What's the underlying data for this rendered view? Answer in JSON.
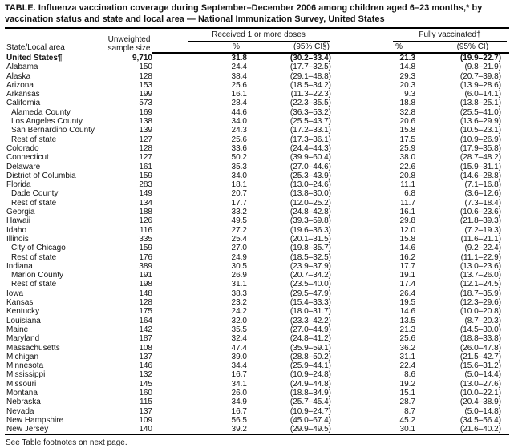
{
  "title": "TABLE. Influenza vaccination coverage during September–December 2006 among children aged 6–23 months,* by vaccination status and state and local area — National Immunization Survey, United States",
  "header": {
    "state_col": "State/Local area",
    "sample_col_line1": "Unweighted",
    "sample_col_line2": "sample size",
    "group_received": "Received 1 or more doses",
    "group_fully": "Fully vaccinated†",
    "pct_received": "%",
    "ci_received": "(95% CI§)",
    "pct_fully": "%",
    "ci_fully": "(95% CI)"
  },
  "rows": [
    {
      "area": "United States¶",
      "indent": false,
      "bold": true,
      "n": "9,710",
      "pct1": "31.8",
      "ci1": "(30.2–33.4)",
      "pct2": "21.3",
      "ci2": "(19.9–22.7)"
    },
    {
      "area": "Alabama",
      "indent": false,
      "bold": false,
      "n": "150",
      "pct1": "24.4",
      "ci1": "(17.7–32.5)",
      "pct2": "14.8",
      "ci2": "(9.8–21.9)"
    },
    {
      "area": "Alaska",
      "indent": false,
      "bold": false,
      "n": "128",
      "pct1": "38.4",
      "ci1": "(29.1–48.8)",
      "pct2": "29.3",
      "ci2": "(20.7–39.8)"
    },
    {
      "area": "Arizona",
      "indent": false,
      "bold": false,
      "n": "153",
      "pct1": "25.6",
      "ci1": "(18.5–34.2)",
      "pct2": "20.3",
      "ci2": "(13.9–28.6)"
    },
    {
      "area": "Arkansas",
      "indent": false,
      "bold": false,
      "n": "199",
      "pct1": "16.1",
      "ci1": "(11.3–22.3)",
      "pct2": "9.3",
      "ci2": "(6.0–14.1)"
    },
    {
      "area": "California",
      "indent": false,
      "bold": false,
      "n": "573",
      "pct1": "28.4",
      "ci1": "(22.3–35.5)",
      "pct2": "18.8",
      "ci2": "(13.8–25.1)"
    },
    {
      "area": "Alameda County",
      "indent": true,
      "bold": false,
      "n": "169",
      "pct1": "44.6",
      "ci1": "(36.3–53.2)",
      "pct2": "32.8",
      "ci2": "(25.5–41.0)"
    },
    {
      "area": "Los Angeles County",
      "indent": true,
      "bold": false,
      "n": "138",
      "pct1": "34.0",
      "ci1": "(25.5–43.7)",
      "pct2": "20.6",
      "ci2": "(13.6–29.9)"
    },
    {
      "area": "San Bernardino County",
      "indent": true,
      "bold": false,
      "n": "139",
      "pct1": "24.3",
      "ci1": "(17.2–33.1)",
      "pct2": "15.8",
      "ci2": "(10.5–23.1)"
    },
    {
      "area": "Rest of state",
      "indent": true,
      "bold": false,
      "n": "127",
      "pct1": "25.6",
      "ci1": "(17.3–36.1)",
      "pct2": "17.5",
      "ci2": "(10.9–26.9)"
    },
    {
      "area": "Colorado",
      "indent": false,
      "bold": false,
      "n": "128",
      "pct1": "33.6",
      "ci1": "(24.4–44.3)",
      "pct2": "25.9",
      "ci2": "(17.9–35.8)"
    },
    {
      "area": "Connecticut",
      "indent": false,
      "bold": false,
      "n": "127",
      "pct1": "50.2",
      "ci1": "(39.9–60.4)",
      "pct2": "38.0",
      "ci2": "(28.7–48.2)"
    },
    {
      "area": "Delaware",
      "indent": false,
      "bold": false,
      "n": "161",
      "pct1": "35.3",
      "ci1": "(27.0–44.6)",
      "pct2": "22.6",
      "ci2": "(15.9–31.1)"
    },
    {
      "area": "District of Columbia",
      "indent": false,
      "bold": false,
      "n": "159",
      "pct1": "34.0",
      "ci1": "(25.3–43.9)",
      "pct2": "20.8",
      "ci2": "(14.6–28.8)"
    },
    {
      "area": "Florida",
      "indent": false,
      "bold": false,
      "n": "283",
      "pct1": "18.1",
      "ci1": "(13.0–24.6)",
      "pct2": "11.1",
      "ci2": "(7.1–16.8)"
    },
    {
      "area": "Dade County",
      "indent": true,
      "bold": false,
      "n": "149",
      "pct1": "20.7",
      "ci1": "(13.8–30.0)",
      "pct2": "6.8",
      "ci2": "(3.6–12.6)"
    },
    {
      "area": "Rest of state",
      "indent": true,
      "bold": false,
      "n": "134",
      "pct1": "17.7",
      "ci1": "(12.0–25.2)",
      "pct2": "11.7",
      "ci2": "(7.3–18.4)"
    },
    {
      "area": "Georgia",
      "indent": false,
      "bold": false,
      "n": "188",
      "pct1": "33.2",
      "ci1": "(24.8–42.8)",
      "pct2": "16.1",
      "ci2": "(10.6–23.6)"
    },
    {
      "area": "Hawaii",
      "indent": false,
      "bold": false,
      "n": "126",
      "pct1": "49.5",
      "ci1": "(39.3–59.8)",
      "pct2": "29.8",
      "ci2": "(21.8–39.3)"
    },
    {
      "area": "Idaho",
      "indent": false,
      "bold": false,
      "n": "116",
      "pct1": "27.2",
      "ci1": "(19.6–36.3)",
      "pct2": "12.0",
      "ci2": "(7.2–19.3)"
    },
    {
      "area": "Illinois",
      "indent": false,
      "bold": false,
      "n": "335",
      "pct1": "25.4",
      "ci1": "(20.1–31.5)",
      "pct2": "15.8",
      "ci2": "(11.6–21.1)"
    },
    {
      "area": "City of Chicago",
      "indent": true,
      "bold": false,
      "n": "159",
      "pct1": "27.0",
      "ci1": "(19.8–35.7)",
      "pct2": "14.6",
      "ci2": "(9.2–22.4)"
    },
    {
      "area": "Rest of state",
      "indent": true,
      "bold": false,
      "n": "176",
      "pct1": "24.9",
      "ci1": "(18.5–32.5)",
      "pct2": "16.2",
      "ci2": "(11.1–22.9)"
    },
    {
      "area": "Indiana",
      "indent": false,
      "bold": false,
      "n": "389",
      "pct1": "30.5",
      "ci1": "(23.9–37.9)",
      "pct2": "17.7",
      "ci2": "(13.0–23.6)"
    },
    {
      "area": "Marion County",
      "indent": true,
      "bold": false,
      "n": "191",
      "pct1": "26.9",
      "ci1": "(20.7–34.2)",
      "pct2": "19.1",
      "ci2": "(13.7–26.0)"
    },
    {
      "area": "Rest of state",
      "indent": true,
      "bold": false,
      "n": "198",
      "pct1": "31.1",
      "ci1": "(23.5–40.0)",
      "pct2": "17.4",
      "ci2": "(12.1–24.5)"
    },
    {
      "area": "Iowa",
      "indent": false,
      "bold": false,
      "n": "148",
      "pct1": "38.3",
      "ci1": "(29.5–47.9)",
      "pct2": "26.4",
      "ci2": "(18.7–35.9)"
    },
    {
      "area": "Kansas",
      "indent": false,
      "bold": false,
      "n": "128",
      "pct1": "23.2",
      "ci1": "(15.4–33.3)",
      "pct2": "19.5",
      "ci2": "(12.3–29.6)"
    },
    {
      "area": "Kentucky",
      "indent": false,
      "bold": false,
      "n": "175",
      "pct1": "24.2",
      "ci1": "(18.0–31.7)",
      "pct2": "14.6",
      "ci2": "(10.0–20.8)"
    },
    {
      "area": "Louisiana",
      "indent": false,
      "bold": false,
      "n": "164",
      "pct1": "32.0",
      "ci1": "(23.3–42.2)",
      "pct2": "13.5",
      "ci2": "(8.7–20.3)"
    },
    {
      "area": "Maine",
      "indent": false,
      "bold": false,
      "n": "142",
      "pct1": "35.5",
      "ci1": "(27.0–44.9)",
      "pct2": "21.3",
      "ci2": "(14.5–30.0)"
    },
    {
      "area": "Maryland",
      "indent": false,
      "bold": false,
      "n": "187",
      "pct1": "32.4",
      "ci1": "(24.8–41.2)",
      "pct2": "25.6",
      "ci2": "(18.8–33.8)"
    },
    {
      "area": "Massachusetts",
      "indent": false,
      "bold": false,
      "n": "108",
      "pct1": "47.4",
      "ci1": "(35.9–59.1)",
      "pct2": "36.2",
      "ci2": "(26.0–47.8)"
    },
    {
      "area": "Michigan",
      "indent": false,
      "bold": false,
      "n": "137",
      "pct1": "39.0",
      "ci1": "(28.8–50.2)",
      "pct2": "31.1",
      "ci2": "(21.5–42.7)"
    },
    {
      "area": "Minnesota",
      "indent": false,
      "bold": false,
      "n": "146",
      "pct1": "34.4",
      "ci1": "(25.9–44.1)",
      "pct2": "22.4",
      "ci2": "(15.6–31.2)"
    },
    {
      "area": "Mississippi",
      "indent": false,
      "bold": false,
      "n": "132",
      "pct1": "16.7",
      "ci1": "(10.9–24.8)",
      "pct2": "8.6",
      "ci2": "(5.0–14.4)"
    },
    {
      "area": "Missouri",
      "indent": false,
      "bold": false,
      "n": "145",
      "pct1": "34.1",
      "ci1": "(24.9–44.8)",
      "pct2": "19.2",
      "ci2": "(13.0–27.6)"
    },
    {
      "area": "Montana",
      "indent": false,
      "bold": false,
      "n": "160",
      "pct1": "26.0",
      "ci1": "(18.8–34.9)",
      "pct2": "15.1",
      "ci2": "(10.0–22.1)"
    },
    {
      "area": "Nebraska",
      "indent": false,
      "bold": false,
      "n": "115",
      "pct1": "34.9",
      "ci1": "(25.7–45.4)",
      "pct2": "28.7",
      "ci2": "(20.4–38.9)"
    },
    {
      "area": "Nevada",
      "indent": false,
      "bold": false,
      "n": "137",
      "pct1": "16.7",
      "ci1": "(10.9–24.7)",
      "pct2": "8.7",
      "ci2": "(5.0–14.8)"
    },
    {
      "area": "New Hampshire",
      "indent": false,
      "bold": false,
      "n": "109",
      "pct1": "56.5",
      "ci1": "(45.0–67.4)",
      "pct2": "45.2",
      "ci2": "(34.5–56.4)"
    },
    {
      "area": "New Jersey",
      "indent": false,
      "bold": false,
      "n": "140",
      "pct1": "39.2",
      "ci1": "(29.9–49.5)",
      "pct2": "30.1",
      "ci2": "(21.6–40.2)"
    }
  ],
  "footnote": "See Table footnotes on next page."
}
